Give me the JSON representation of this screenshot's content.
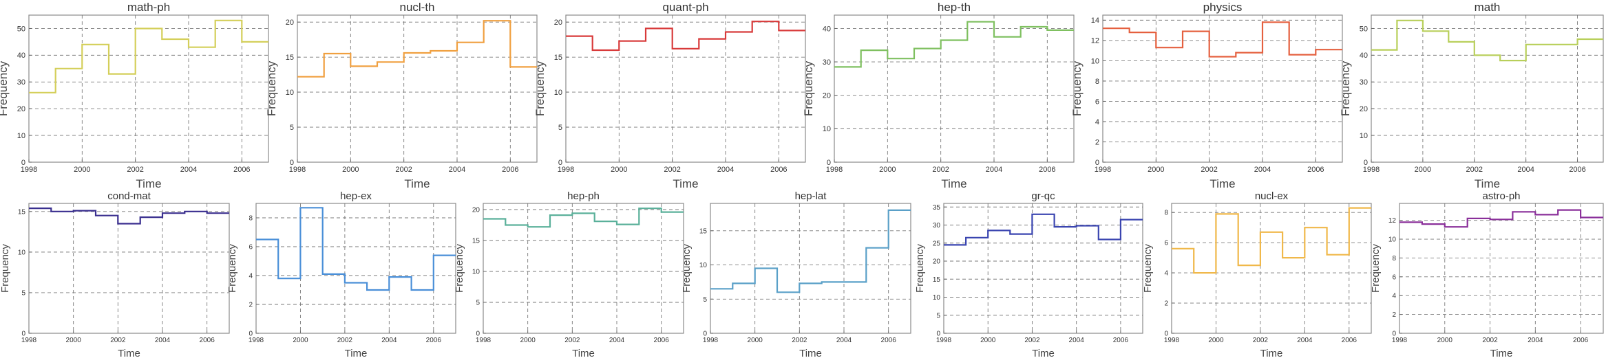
{
  "chart_data": [
    {
      "type": "line",
      "step": true,
      "title": "math-ph",
      "xlabel": "Time",
      "ylabel": "Frequency",
      "color": "#d4cf5a",
      "xlim": [
        1998,
        2007
      ],
      "ylim": [
        0,
        55
      ],
      "yticks": [
        0,
        10,
        20,
        30,
        40,
        50
      ],
      "xticks": [
        1998,
        2000,
        2002,
        2004,
        2006
      ],
      "x": [
        1998,
        1999,
        2000,
        2001,
        2002,
        2003,
        2004,
        2005,
        2006
      ],
      "values": [
        26,
        35,
        44,
        33,
        50,
        46,
        43,
        53,
        45
      ]
    },
    {
      "type": "line",
      "step": true,
      "title": "nucl-th",
      "xlabel": "Time",
      "ylabel": "Frequency",
      "color": "#f0a040",
      "xlim": [
        1998,
        2007
      ],
      "ylim": [
        0,
        21
      ],
      "yticks": [
        0,
        5,
        10,
        15,
        20
      ],
      "xticks": [
        1998,
        2000,
        2002,
        2004,
        2006
      ],
      "x": [
        1998,
        1999,
        2000,
        2001,
        2002,
        2003,
        2004,
        2005,
        2006
      ],
      "values": [
        12.2,
        15.5,
        13.7,
        14.3,
        15.6,
        15.9,
        17.1,
        20.2,
        13.6
      ]
    },
    {
      "type": "line",
      "step": true,
      "title": "quant-ph",
      "xlabel": "Time",
      "ylabel": "Frequency",
      "color": "#d83a3a",
      "xlim": [
        1998,
        2007
      ],
      "ylim": [
        0,
        21
      ],
      "yticks": [
        0,
        5,
        10,
        15,
        20
      ],
      "xticks": [
        1998,
        2000,
        2002,
        2004,
        2006
      ],
      "x": [
        1998,
        1999,
        2000,
        2001,
        2002,
        2003,
        2004,
        2005,
        2006
      ],
      "values": [
        18.0,
        16.0,
        17.3,
        19.1,
        16.2,
        17.6,
        18.6,
        20.1,
        18.8
      ]
    },
    {
      "type": "line",
      "step": true,
      "title": "hep-th",
      "xlabel": "Time",
      "ylabel": "Frequency",
      "color": "#7fc060",
      "xlim": [
        1998,
        2007
      ],
      "ylim": [
        0,
        44
      ],
      "yticks": [
        0,
        10,
        20,
        30,
        40
      ],
      "xticks": [
        1998,
        2000,
        2002,
        2004,
        2006
      ],
      "x": [
        1998,
        1999,
        2000,
        2001,
        2002,
        2003,
        2004,
        2005,
        2006
      ],
      "values": [
        28.5,
        33.5,
        31,
        34,
        36.5,
        42,
        37.5,
        40.5,
        39.5
      ]
    },
    {
      "type": "line",
      "step": true,
      "title": "physics",
      "xlabel": "Time",
      "ylabel": "Frequency",
      "color": "#e5603f",
      "xlim": [
        1998,
        2007
      ],
      "ylim": [
        0,
        14.5
      ],
      "yticks": [
        0,
        2,
        4,
        6,
        8,
        10,
        12,
        14
      ],
      "xticks": [
        1998,
        2000,
        2002,
        2004,
        2006
      ],
      "x": [
        1998,
        1999,
        2000,
        2001,
        2002,
        2003,
        2004,
        2005,
        2006
      ],
      "values": [
        13.2,
        12.8,
        11.3,
        12.9,
        10.4,
        10.8,
        13.8,
        10.6,
        11.1
      ]
    },
    {
      "type": "line",
      "step": true,
      "title": "math",
      "xlabel": "Time",
      "ylabel": "Frequency",
      "color": "#b8cf5a",
      "xlim": [
        1998,
        2007
      ],
      "ylim": [
        0,
        55
      ],
      "yticks": [
        0,
        10,
        20,
        30,
        40,
        50
      ],
      "xticks": [
        1998,
        2000,
        2002,
        2004,
        2006
      ],
      "x": [
        1998,
        1999,
        2000,
        2001,
        2002,
        2003,
        2004,
        2005,
        2006
      ],
      "values": [
        42,
        53,
        49,
        45,
        40,
        38,
        44,
        44,
        46
      ]
    },
    {
      "type": "line",
      "step": true,
      "title": "cond-mat",
      "xlabel": "Time",
      "ylabel": "Frequency",
      "color": "#3a2f8f",
      "xlim": [
        1998,
        2007
      ],
      "ylim": [
        0,
        16
      ],
      "yticks": [
        0,
        5,
        10,
        15
      ],
      "xticks": [
        1998,
        2000,
        2002,
        2004,
        2006
      ],
      "x": [
        1998,
        1999,
        2000,
        2001,
        2002,
        2003,
        2004,
        2005,
        2006
      ],
      "values": [
        15.4,
        15.0,
        15.1,
        14.5,
        13.5,
        14.3,
        14.8,
        15.0,
        14.8
      ]
    },
    {
      "type": "line",
      "step": true,
      "title": "hep-ex",
      "xlabel": "Time",
      "ylabel": "Frequency",
      "color": "#4a8fd8",
      "xlim": [
        1998,
        2007
      ],
      "ylim": [
        0,
        9
      ],
      "yticks": [
        0,
        2,
        4,
        6,
        8
      ],
      "xticks": [
        1998,
        2000,
        2002,
        2004,
        2006
      ],
      "x": [
        1998,
        1999,
        2000,
        2001,
        2002,
        2003,
        2004,
        2005,
        2006
      ],
      "values": [
        6.5,
        3.8,
        8.7,
        4.1,
        3.5,
        3.0,
        3.9,
        3.0,
        5.4
      ]
    },
    {
      "type": "line",
      "step": true,
      "title": "hep-ph",
      "xlabel": "Time",
      "ylabel": "Frequency",
      "color": "#5ab09a",
      "xlim": [
        1998,
        2007
      ],
      "ylim": [
        0,
        21
      ],
      "yticks": [
        0,
        5,
        10,
        15,
        20
      ],
      "xticks": [
        1998,
        2000,
        2002,
        2004,
        2006
      ],
      "x": [
        1998,
        1999,
        2000,
        2001,
        2002,
        2003,
        2004,
        2005,
        2006
      ],
      "values": [
        18.5,
        17.5,
        17.2,
        19.1,
        19.4,
        18.1,
        17.6,
        20.2,
        19.6
      ]
    },
    {
      "type": "line",
      "step": true,
      "title": "hep-lat",
      "xlabel": "Time",
      "ylabel": "Frequency",
      "color": "#5aa0c8",
      "xlim": [
        1998,
        2007
      ],
      "ylim": [
        0,
        19
      ],
      "yticks": [
        0,
        5,
        10,
        15
      ],
      "xticks": [
        1998,
        2000,
        2002,
        2004,
        2006
      ],
      "x": [
        1998,
        1999,
        2000,
        2001,
        2002,
        2003,
        2004,
        2005,
        2006
      ],
      "values": [
        6.5,
        7.3,
        9.5,
        6.0,
        7.3,
        7.5,
        7.5,
        12.5,
        18.0
      ]
    },
    {
      "type": "line",
      "step": true,
      "title": "gr-qc",
      "xlabel": "Time",
      "ylabel": "Frequency",
      "color": "#3a45b0",
      "xlim": [
        1998,
        2007
      ],
      "ylim": [
        0,
        36
      ],
      "yticks": [
        0,
        5,
        10,
        15,
        20,
        25,
        30,
        35
      ],
      "xticks": [
        1998,
        2000,
        2002,
        2004,
        2006
      ],
      "x": [
        1998,
        1999,
        2000,
        2001,
        2002,
        2003,
        2004,
        2005,
        2006
      ],
      "values": [
        24.5,
        26.5,
        28.5,
        27.5,
        33.0,
        29.5,
        29.8,
        26.0,
        31.5
      ]
    },
    {
      "type": "line",
      "step": true,
      "title": "nucl-ex",
      "xlabel": "Time",
      "ylabel": "Frequency",
      "color": "#f0b84a",
      "xlim": [
        1998,
        2007
      ],
      "ylim": [
        0,
        8.6
      ],
      "yticks": [
        0,
        2,
        4,
        6,
        8
      ],
      "xticks": [
        1998,
        2000,
        2002,
        2004,
        2006
      ],
      "x": [
        1998,
        1999,
        2000,
        2001,
        2002,
        2003,
        2004,
        2005,
        2006
      ],
      "values": [
        5.6,
        4.0,
        7.9,
        4.5,
        6.7,
        5.0,
        7.0,
        5.2,
        8.3
      ]
    },
    {
      "type": "line",
      "step": true,
      "title": "astro-ph",
      "xlabel": "Time",
      "ylabel": "Frequency",
      "color": "#8a2f9a",
      "xlim": [
        1998,
        2007
      ],
      "ylim": [
        0,
        13.8
      ],
      "yticks": [
        0,
        2,
        4,
        6,
        8,
        10,
        12
      ],
      "xticks": [
        1998,
        2000,
        2002,
        2004,
        2006
      ],
      "x": [
        1998,
        1999,
        2000,
        2001,
        2002,
        2003,
        2004,
        2005,
        2006
      ],
      "values": [
        11.8,
        11.6,
        11.3,
        12.2,
        12.1,
        12.9,
        12.6,
        13.1,
        12.3
      ]
    }
  ]
}
